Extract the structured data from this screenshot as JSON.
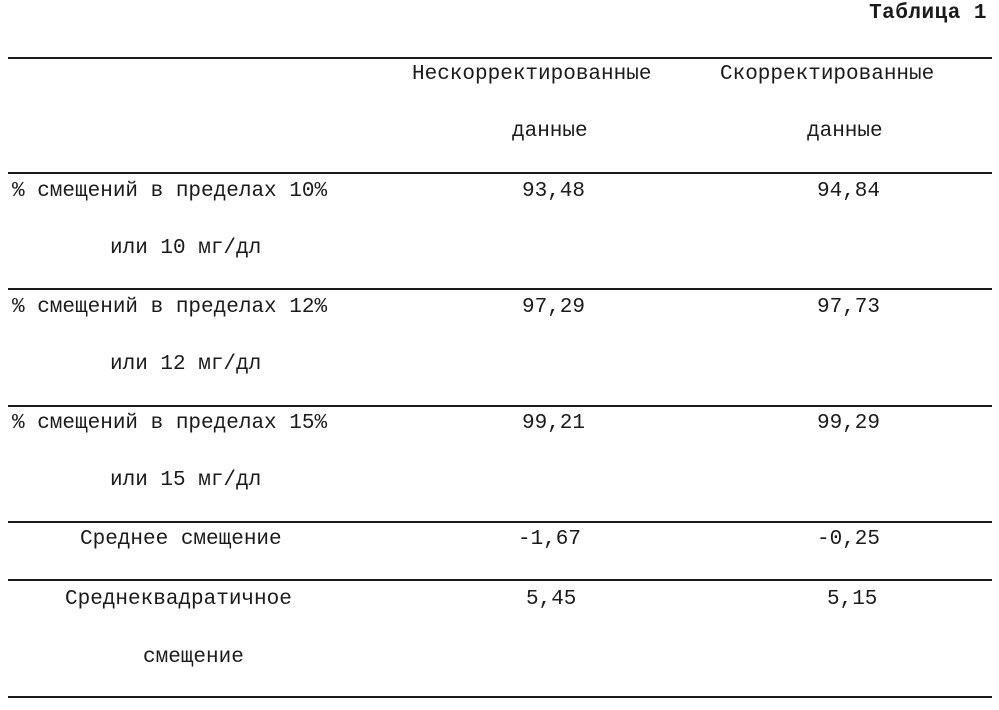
{
  "table": {
    "caption": "Таблица 1",
    "header": {
      "col_uncorrected": [
        "Нескорректированные",
        "данные"
      ],
      "col_corrected": [
        "Скорректированные",
        "данные"
      ]
    },
    "rows": [
      {
        "label": [
          "% смещений в пределах 10%",
          "или 10 мг/дл"
        ],
        "uncorrected": "93,48",
        "corrected": "94,84"
      },
      {
        "label": [
          "% смещений в пределах 12%",
          "или 12 мг/дл"
        ],
        "uncorrected": "97,29",
        "corrected": "97,73"
      },
      {
        "label": [
          "% смещений в пределах 15%",
          "или 15 мг/дл"
        ],
        "uncorrected": "99,21",
        "corrected": "99,29"
      },
      {
        "label": [
          "Среднее смещение"
        ],
        "uncorrected": "-1,67",
        "corrected": "-0,25"
      },
      {
        "label": [
          "Среднеквадратичное",
          "смещение"
        ],
        "uncorrected": "5,45",
        "corrected": "5,15"
      }
    ]
  }
}
